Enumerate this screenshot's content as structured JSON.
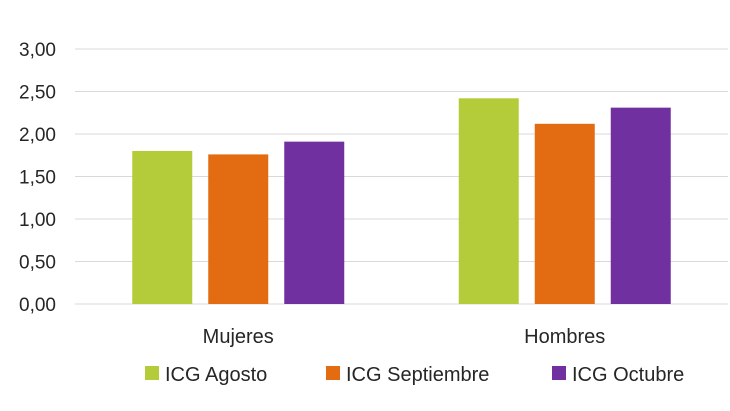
{
  "chart_data": {
    "type": "bar",
    "title": "",
    "xlabel": "",
    "ylabel": "",
    "categories": [
      "Mujeres",
      "Hombres"
    ],
    "series": [
      {
        "name": "ICG Agosto",
        "color": "#b5cc3a",
        "values": [
          1.8,
          2.42
        ]
      },
      {
        "name": "ICG Septiembre",
        "color": "#e36c12",
        "values": [
          1.76,
          2.12
        ]
      },
      {
        "name": "ICG Octubre",
        "color": "#7030a0",
        "values": [
          1.91,
          2.31
        ]
      }
    ],
    "ylim": [
      0,
      3
    ],
    "yticks": [
      "0,00",
      "0,50",
      "1,00",
      "1,50",
      "2,00",
      "2,50",
      "3,00"
    ],
    "grid": true,
    "legend_position": "bottom"
  }
}
